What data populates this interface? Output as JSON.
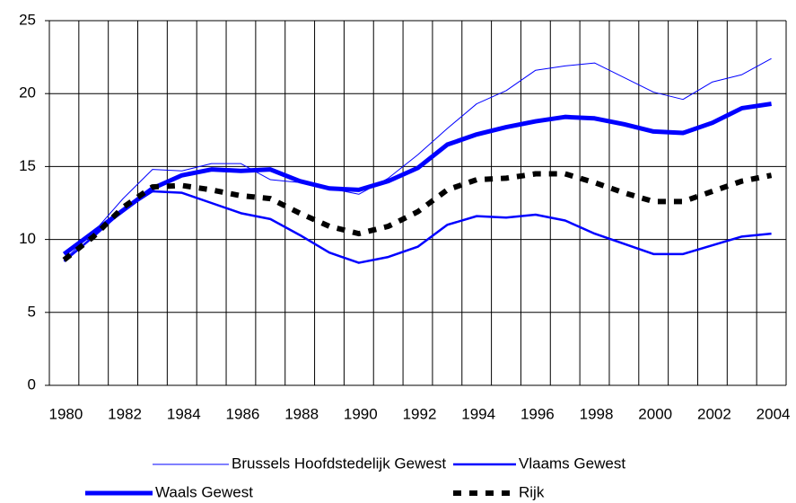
{
  "chart_data": {
    "type": "line",
    "categories": [
      "1980",
      null,
      "1982",
      null,
      "1984",
      null,
      "1986",
      null,
      "1988",
      null,
      "1990",
      null,
      "1992",
      null,
      "1994",
      null,
      "1996",
      null,
      "1998",
      null,
      "2000",
      null,
      "2002",
      null,
      "2004"
    ],
    "ylim": [
      0,
      25
    ],
    "yticks": [
      0,
      5,
      10,
      15,
      20,
      25
    ],
    "grid": true,
    "series": [
      {
        "name": "Brussels Hoofdstedelijk Gewest",
        "color": "#0000ff",
        "width": 1,
        "dashed": false,
        "values": [
          8.6,
          10.5,
          12.8,
          14.8,
          14.7,
          15.2,
          15.2,
          14.1,
          13.9,
          13.5,
          13.1,
          14.2,
          15.8,
          17.6,
          19.3,
          20.2,
          21.6,
          21.9,
          22.1,
          21.1,
          20.1,
          19.6,
          20.8,
          21.3,
          22.4
        ]
      },
      {
        "name": "Vlaams Gewest",
        "color": "#0000ff",
        "width": 2.5,
        "dashed": false,
        "values": [
          8.5,
          10.2,
          12.0,
          13.3,
          13.2,
          12.5,
          11.8,
          11.4,
          10.3,
          9.1,
          8.4,
          8.8,
          9.5,
          11.0,
          11.6,
          11.5,
          11.7,
          11.3,
          10.4,
          9.7,
          9.0,
          9.0,
          9.6,
          10.2,
          10.4
        ]
      },
      {
        "name": "Waals Gewest",
        "color": "#0000ff",
        "width": 5,
        "dashed": false,
        "values": [
          9.0,
          10.5,
          12.0,
          13.5,
          14.4,
          14.8,
          14.7,
          14.8,
          14.0,
          13.5,
          13.4,
          14.0,
          14.9,
          16.5,
          17.2,
          17.7,
          18.1,
          18.4,
          18.3,
          17.9,
          17.4,
          17.3,
          18.0,
          19.0,
          19.3
        ]
      },
      {
        "name": "Rijk",
        "color": "#000000",
        "width": 6,
        "dashed": true,
        "values": [
          8.6,
          10.2,
          12.2,
          13.6,
          13.7,
          13.4,
          13.0,
          12.8,
          11.8,
          10.9,
          10.4,
          10.9,
          11.9,
          13.4,
          14.1,
          14.2,
          14.5,
          14.5,
          13.9,
          13.2,
          12.6,
          12.6,
          13.3,
          14.0,
          14.4
        ]
      }
    ]
  }
}
